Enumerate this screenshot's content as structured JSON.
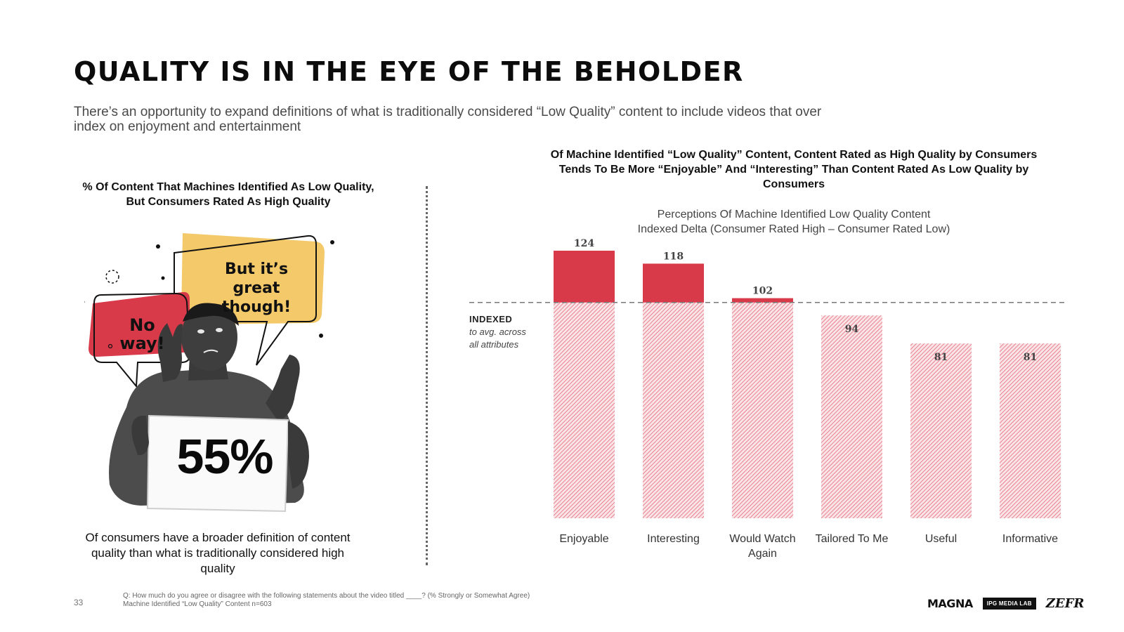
{
  "slide": {
    "title": "QUALITY IS IN THE EYE OF THE BEHOLDER",
    "subtitle": "There’s an opportunity to expand definitions of what is traditionally considered “Low Quality” content to include videos that over index on enjoyment and entertainment",
    "page_number": "33"
  },
  "left_panel": {
    "heading_line1": "% Of Content That Machines Identified As Low Quality,",
    "heading_line2": "But Consumers Rated As High Quality",
    "bubble_yellow_text": "But it’s great though!",
    "bubble_red_text": "No way!",
    "stat_value": "55%",
    "caption": "Of consumers have a broader definition of content quality than what is traditionally considered high quality"
  },
  "right_panel": {
    "heading": "Of Machine Identified “Low Quality” Content, Content Rated as High Quality by Consumers Tends To Be More “Enjoyable” And “Interesting” Than Content Rated As Low Quality by Consumers",
    "indexed_title": "INDEXED",
    "indexed_desc_line1": "to avg. across",
    "indexed_desc_line2": "all attributes"
  },
  "chart_data": {
    "type": "bar",
    "title": "Perceptions Of Machine Identified Low Quality Content",
    "subtitle": "Indexed Delta (Consumer Rated High – Consumer Rated Low)",
    "categories": [
      "Enjoyable",
      "Interesting",
      "Would Watch Again",
      "Tailored To Me",
      "Useful",
      "Informative"
    ],
    "values": [
      124,
      118,
      102,
      94,
      81,
      81
    ],
    "baseline": 100,
    "ylim": [
      0,
      124
    ],
    "xlabel": "",
    "ylabel": "",
    "colors": {
      "above": "#d93a4a",
      "hatch": "#e46a77"
    }
  },
  "footer": {
    "question": "Q: How much do you agree or disagree with the following statements about the video titled ____? (% Strongly or Somewhat Agree)",
    "base": "Machine Identified “Low Quality” Content n=603",
    "logo_magna": "MAGNA",
    "logo_ipg": "IPG MEDIA LAB",
    "logo_zefr": "ZEFR"
  }
}
